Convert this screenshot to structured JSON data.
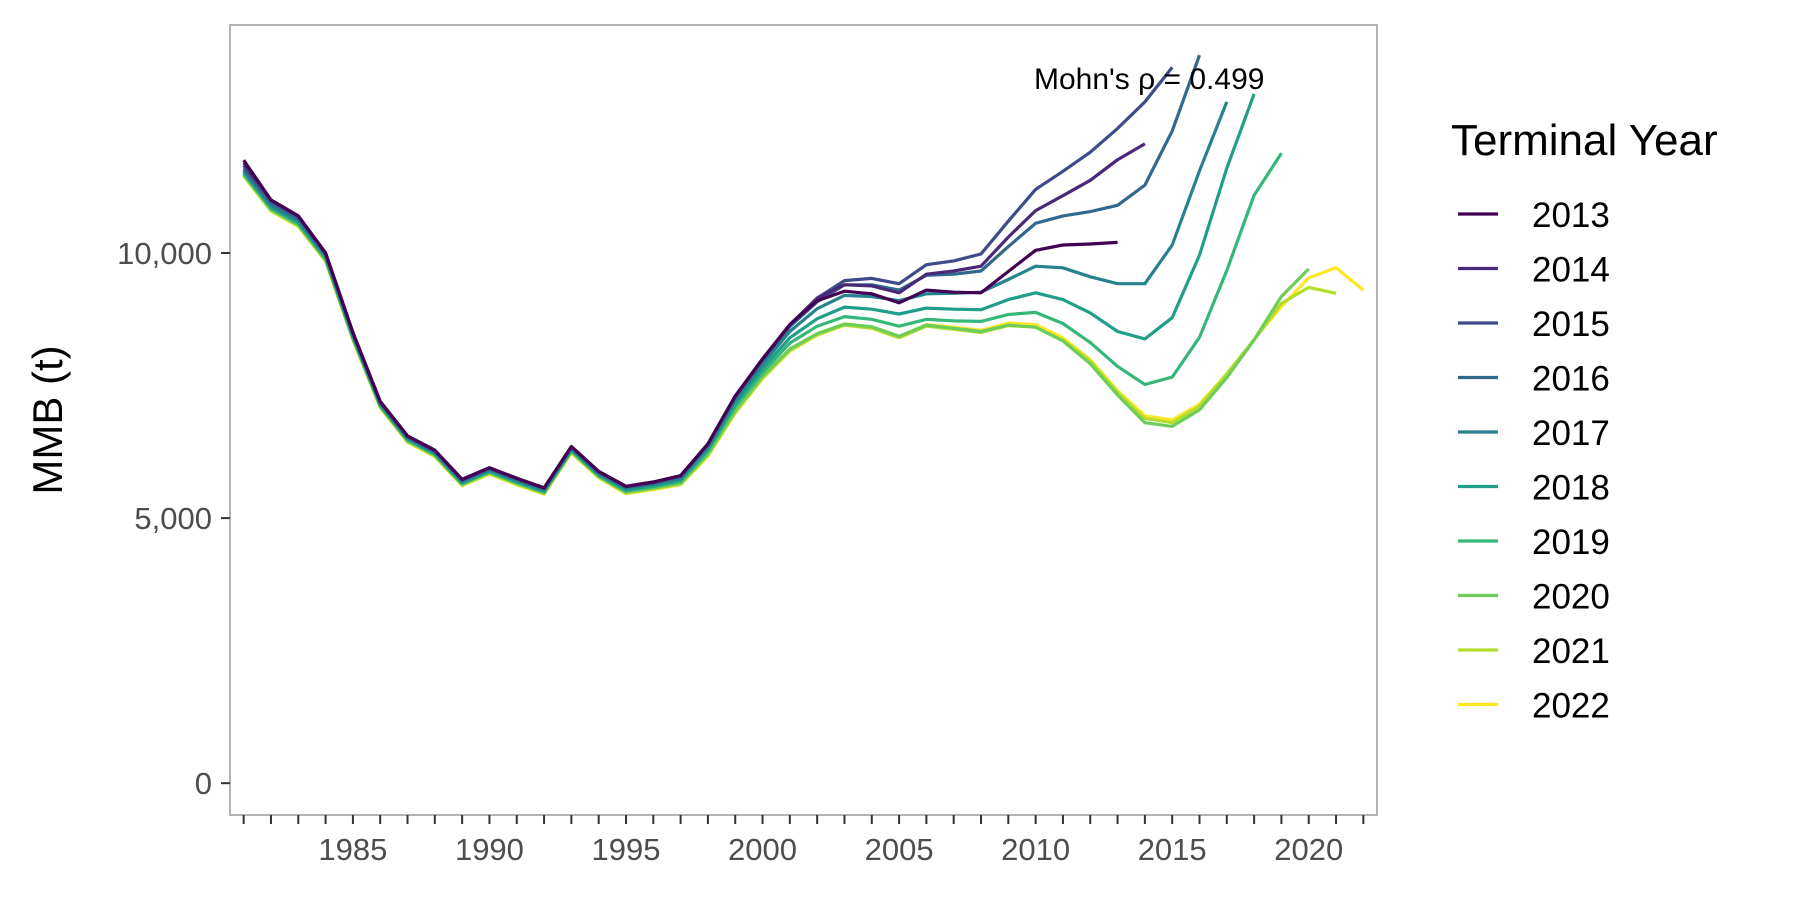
{
  "chart_data": {
    "type": "line",
    "title": "",
    "xlabel": "",
    "ylabel": "MMB (t)",
    "xlim": [
      1980.5,
      2022.5
    ],
    "ylim": [
      -600,
      14300
    ],
    "x_ticks": [
      1985,
      1990,
      1995,
      2000,
      2005,
      2010,
      2015,
      2020
    ],
    "x_tick_labels": [
      "1985",
      "1990",
      "1995",
      "2000",
      "2005",
      "2010",
      "2015",
      "2020"
    ],
    "x_minor_ticks": [
      1981,
      1982,
      1983,
      1984,
      1985,
      1986,
      1987,
      1988,
      1989,
      1990,
      1991,
      1992,
      1993,
      1994,
      1995,
      1996,
      1997,
      1998,
      1999,
      2000,
      2001,
      2002,
      2003,
      2004,
      2005,
      2006,
      2007,
      2008,
      2009,
      2010,
      2011,
      2012,
      2013,
      2014,
      2015,
      2016,
      2017,
      2018,
      2019,
      2020,
      2021,
      2022
    ],
    "y_ticks": [
      0,
      5000,
      10000
    ],
    "y_tick_labels": [
      "0",
      "5,000",
      "10,000"
    ],
    "grid": false,
    "legend": {
      "title": "Terminal Year",
      "placement": "right"
    },
    "annotation": "Mohn's ρ =  0.499",
    "years": [
      1981,
      1982,
      1983,
      1984,
      1985,
      1986,
      1987,
      1988,
      1989,
      1990,
      1991,
      1992,
      1993,
      1994,
      1995,
      1996,
      1997,
      1998,
      1999,
      2000,
      2001,
      2002,
      2003,
      2004,
      2005,
      2006,
      2007,
      2008,
      2009,
      2010,
      2011,
      2012,
      2013,
      2014,
      2015,
      2016,
      2017,
      2018,
      2019,
      2020,
      2021,
      2022
    ],
    "series": [
      {
        "name": "2013",
        "color": "#440154",
        "values": [
          11750,
          11000,
          10700,
          10000,
          8500,
          7200,
          6550,
          6280,
          5730,
          5950,
          5750,
          5570,
          6350,
          5880,
          5600,
          5680,
          5800,
          6400,
          7300,
          8000,
          8650,
          9100,
          9280,
          9230,
          9060,
          9300,
          9260,
          9250,
          9650,
          10050,
          10150,
          10170,
          10200
        ]
      },
      {
        "name": "2014",
        "color": "#482878",
        "values": [
          11700,
          11000,
          10700,
          10000,
          8500,
          7200,
          6550,
          6280,
          5730,
          5950,
          5750,
          5570,
          6350,
          5880,
          5600,
          5680,
          5800,
          6400,
          7300,
          8000,
          8650,
          9150,
          9400,
          9380,
          9250,
          9600,
          9660,
          9750,
          10300,
          10800,
          11080,
          11370,
          11760,
          12060
        ]
      },
      {
        "name": "2015",
        "color": "#3E4A89",
        "values": [
          11650,
          10980,
          10680,
          9990,
          8490,
          7190,
          6540,
          6270,
          5720,
          5940,
          5740,
          5560,
          6340,
          5870,
          5590,
          5670,
          5790,
          6390,
          7290,
          7990,
          8640,
          9150,
          9480,
          9520,
          9420,
          9780,
          9850,
          9980,
          10600,
          11200,
          11540,
          11900,
          12350,
          12850,
          13500
        ]
      },
      {
        "name": "2016",
        "color": "#31688E",
        "values": [
          11600,
          10950,
          10650,
          9980,
          8480,
          7180,
          6530,
          6260,
          5710,
          5930,
          5730,
          5550,
          6330,
          5860,
          5580,
          5660,
          5780,
          6380,
          7270,
          7970,
          8610,
          9080,
          9400,
          9400,
          9300,
          9580,
          9600,
          9660,
          10120,
          10560,
          10700,
          10780,
          10900,
          11280,
          12300,
          13730
        ]
      },
      {
        "name": "2017",
        "color": "#26828E",
        "values": [
          11560,
          10900,
          10610,
          9950,
          8460,
          7160,
          6510,
          6240,
          5690,
          5910,
          5710,
          5530,
          6310,
          5840,
          5560,
          5640,
          5750,
          6340,
          7220,
          7900,
          8520,
          8950,
          9200,
          9180,
          9100,
          9230,
          9240,
          9260,
          9500,
          9750,
          9720,
          9550,
          9420,
          9420,
          10150,
          11550,
          12850
        ]
      },
      {
        "name": "2018",
        "color": "#1F9E89",
        "values": [
          11530,
          10870,
          10580,
          9920,
          8430,
          7140,
          6490,
          6220,
          5670,
          5890,
          5690,
          5510,
          6290,
          5820,
          5530,
          5610,
          5720,
          6300,
          7160,
          7820,
          8400,
          8760,
          8980,
          8940,
          8850,
          8960,
          8940,
          8930,
          9120,
          9250,
          9120,
          8870,
          8520,
          8380,
          8780,
          9960,
          11600,
          13000
        ]
      },
      {
        "name": "2019",
        "color": "#35B779",
        "values": [
          11500,
          10840,
          10550,
          9890,
          8400,
          7120,
          6470,
          6200,
          5650,
          5870,
          5670,
          5490,
          6270,
          5800,
          5510,
          5590,
          5690,
          6260,
          7100,
          7740,
          8300,
          8620,
          8800,
          8750,
          8620,
          8750,
          8720,
          8710,
          8840,
          8880,
          8670,
          8310,
          7860,
          7520,
          7660,
          8410,
          9670,
          11090,
          11880
        ]
      },
      {
        "name": "2020",
        "color": "#6DCD59",
        "values": [
          11480,
          10820,
          10530,
          9870,
          8390,
          7110,
          6460,
          6190,
          5640,
          5860,
          5660,
          5480,
          6260,
          5790,
          5490,
          5570,
          5660,
          6210,
          7030,
          7670,
          8190,
          8480,
          8660,
          8610,
          8430,
          8640,
          8580,
          8520,
          8640,
          8600,
          8340,
          7910,
          7320,
          6800,
          6730,
          7040,
          7650,
          8360,
          9180,
          9700
        ]
      },
      {
        "name": "2021",
        "color": "#B4DE2C",
        "values": [
          11460,
          10800,
          10510,
          9850,
          8370,
          7090,
          6440,
          6170,
          5620,
          5840,
          5640,
          5460,
          6240,
          5770,
          5470,
          5550,
          5640,
          6180,
          6990,
          7640,
          8160,
          8460,
          8640,
          8580,
          8400,
          8620,
          8560,
          8500,
          8630,
          8600,
          8360,
          7960,
          7370,
          6880,
          6800,
          7110,
          7720,
          8360,
          9050,
          9350,
          9240
        ]
      },
      {
        "name": "2022",
        "color": "#FDE725",
        "values": [
          11450,
          10790,
          10500,
          9840,
          8360,
          7080,
          6430,
          6160,
          5610,
          5830,
          5630,
          5450,
          6230,
          5760,
          5460,
          5540,
          5630,
          6170,
          6980,
          7630,
          8150,
          8450,
          8640,
          8590,
          8420,
          8650,
          8600,
          8540,
          8680,
          8650,
          8400,
          7990,
          7400,
          6930,
          6850,
          7150,
          7720,
          8370,
          8990,
          9530,
          9720,
          9300
        ]
      }
    ]
  }
}
